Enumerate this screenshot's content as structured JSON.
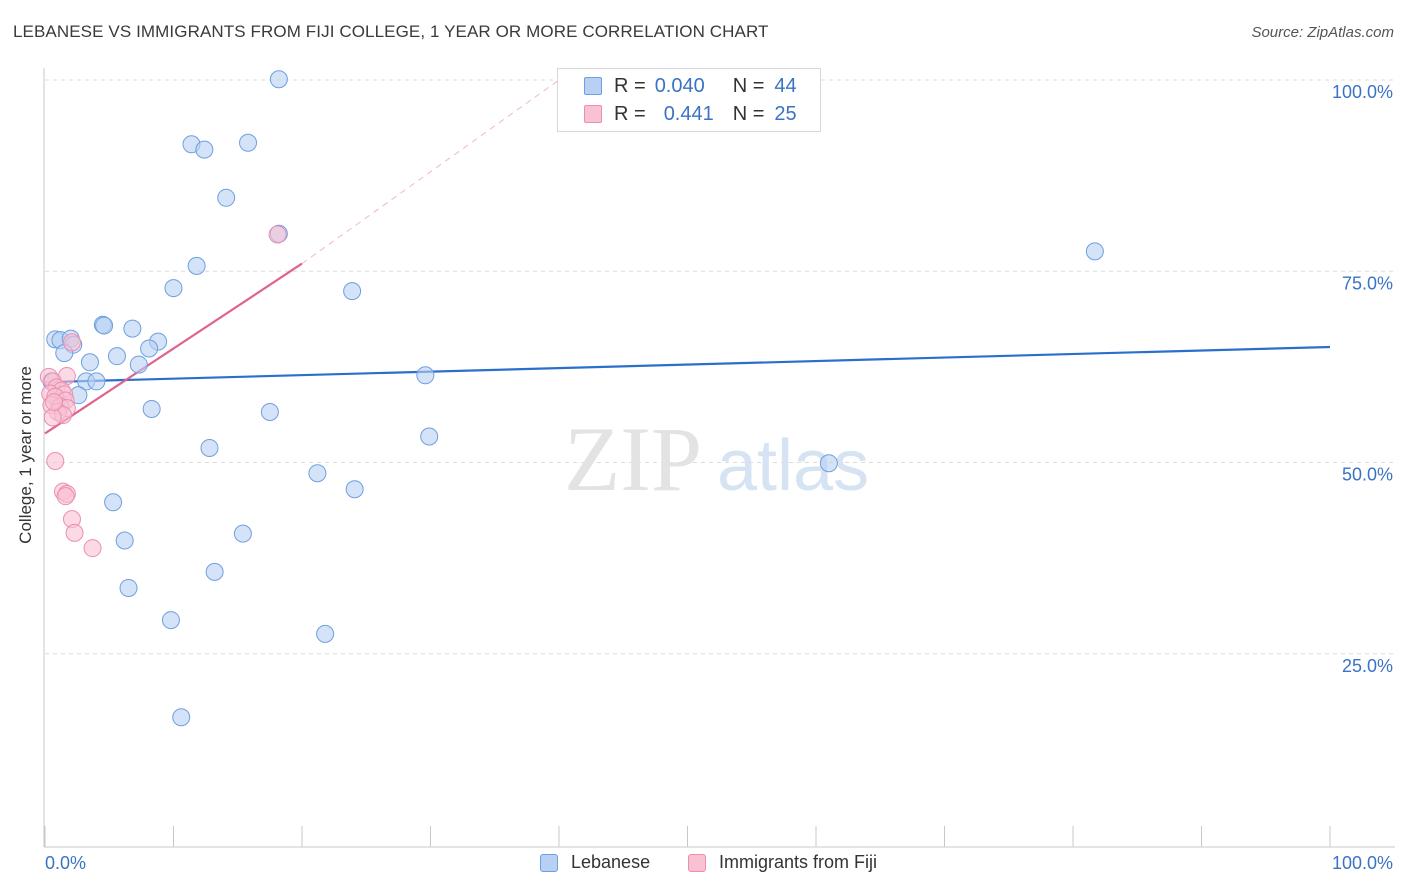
{
  "title": "LEBANESE VS IMMIGRANTS FROM FIJI COLLEGE, 1 YEAR OR MORE CORRELATION CHART",
  "source": "Source: ZipAtlas.com",
  "watermark": {
    "zip": "ZIP",
    "atlas": "atlas"
  },
  "legend": {
    "r_label": "R =",
    "n_label": "N =",
    "rows": [
      {
        "name": "Lebanese",
        "r": "0.040",
        "n": "44"
      },
      {
        "name": "Immigrants from Fiji",
        "r": "0.441",
        "n": "25"
      }
    ]
  },
  "colors": {
    "lebanese_fill": "#b8d0f3",
    "lebanese_stroke": "#6f9fdf",
    "lebanese_line": "#2a6fcc",
    "fiji_fill": "#f8c2d3",
    "fiji_stroke": "#ec8fae",
    "fiji_line": "#e0628f",
    "axis_text": "#3a73c4",
    "grid": "#dcdcdc"
  },
  "chart_data": {
    "type": "scatter",
    "title": "LEBANESE VS IMMIGRANTS FROM FIJI COLLEGE, 1 YEAR OR MORE CORRELATION CHART",
    "xlabel": "",
    "ylabel": "College, 1 year or more",
    "xlim": [
      0,
      100
    ],
    "ylim": [
      0,
      100
    ],
    "x_tick_labels": [
      "0.0%",
      "100.0%"
    ],
    "y_ticks": [
      25,
      50,
      75,
      100
    ],
    "y_tick_labels": [
      "25.0%",
      "50.0%",
      "75.0%",
      "100.0%"
    ],
    "grid": true,
    "legend_position": "top-center",
    "series": [
      {
        "name": "Lebanese",
        "points": [
          [
            18.2,
            100.1
          ],
          [
            11.4,
            91.6
          ],
          [
            12.4,
            90.9
          ],
          [
            15.8,
            91.8
          ],
          [
            14.1,
            84.6
          ],
          [
            18.2,
            79.9
          ],
          [
            11.8,
            75.7
          ],
          [
            10.0,
            72.8
          ],
          [
            23.9,
            72.4
          ],
          [
            4.5,
            68.0
          ],
          [
            4.6,
            67.9
          ],
          [
            6.8,
            67.5
          ],
          [
            0.8,
            66.1
          ],
          [
            1.2,
            66.0
          ],
          [
            2.0,
            66.2
          ],
          [
            2.2,
            65.4
          ],
          [
            8.8,
            65.8
          ],
          [
            8.1,
            64.9
          ],
          [
            1.5,
            64.3
          ],
          [
            5.6,
            63.9
          ],
          [
            3.5,
            63.1
          ],
          [
            7.3,
            62.8
          ],
          [
            29.6,
            61.4
          ],
          [
            3.2,
            60.6
          ],
          [
            4.0,
            60.6
          ],
          [
            2.6,
            58.8
          ],
          [
            8.3,
            57.0
          ],
          [
            17.5,
            56.6
          ],
          [
            29.9,
            53.4
          ],
          [
            12.8,
            51.9
          ],
          [
            81.7,
            77.6
          ],
          [
            61.0,
            49.9
          ],
          [
            21.2,
            48.6
          ],
          [
            24.1,
            46.5
          ],
          [
            5.3,
            44.8
          ],
          [
            6.2,
            39.8
          ],
          [
            15.4,
            40.7
          ],
          [
            13.2,
            35.7
          ],
          [
            6.5,
            33.6
          ],
          [
            9.8,
            29.4
          ],
          [
            21.8,
            27.6
          ],
          [
            10.6,
            16.7
          ],
          [
            0.5,
            60.6
          ],
          [
            1.0,
            58.0
          ]
        ],
        "trend": {
          "x0": 0,
          "y0": 60.5,
          "x1": 100,
          "y1": 65.1
        }
      },
      {
        "name": "Immigrants from Fiji",
        "points": [
          [
            18.1,
            79.8
          ],
          [
            2.1,
            65.7
          ],
          [
            0.3,
            61.2
          ],
          [
            1.7,
            61.3
          ],
          [
            0.6,
            60.6
          ],
          [
            0.9,
            59.8
          ],
          [
            1.3,
            59.4
          ],
          [
            0.4,
            59.0
          ],
          [
            1.5,
            58.9
          ],
          [
            0.8,
            58.6
          ],
          [
            1.6,
            58.1
          ],
          [
            0.5,
            57.5
          ],
          [
            1.2,
            57.3
          ],
          [
            1.7,
            57.1
          ],
          [
            1.0,
            56.6
          ],
          [
            1.4,
            56.2
          ],
          [
            0.6,
            55.9
          ],
          [
            0.8,
            50.2
          ],
          [
            1.4,
            46.2
          ],
          [
            1.7,
            45.9
          ],
          [
            1.6,
            45.6
          ],
          [
            2.1,
            42.6
          ],
          [
            2.3,
            40.8
          ],
          [
            3.7,
            38.8
          ],
          [
            0.7,
            57.9
          ]
        ],
        "trend": {
          "x0": 0,
          "y0": 53.8,
          "x1": 20,
          "y1": 76.0
        },
        "trend_extension": {
          "x0": 20,
          "y0": 76.0,
          "x1": 40,
          "y1": 100
        }
      }
    ]
  }
}
